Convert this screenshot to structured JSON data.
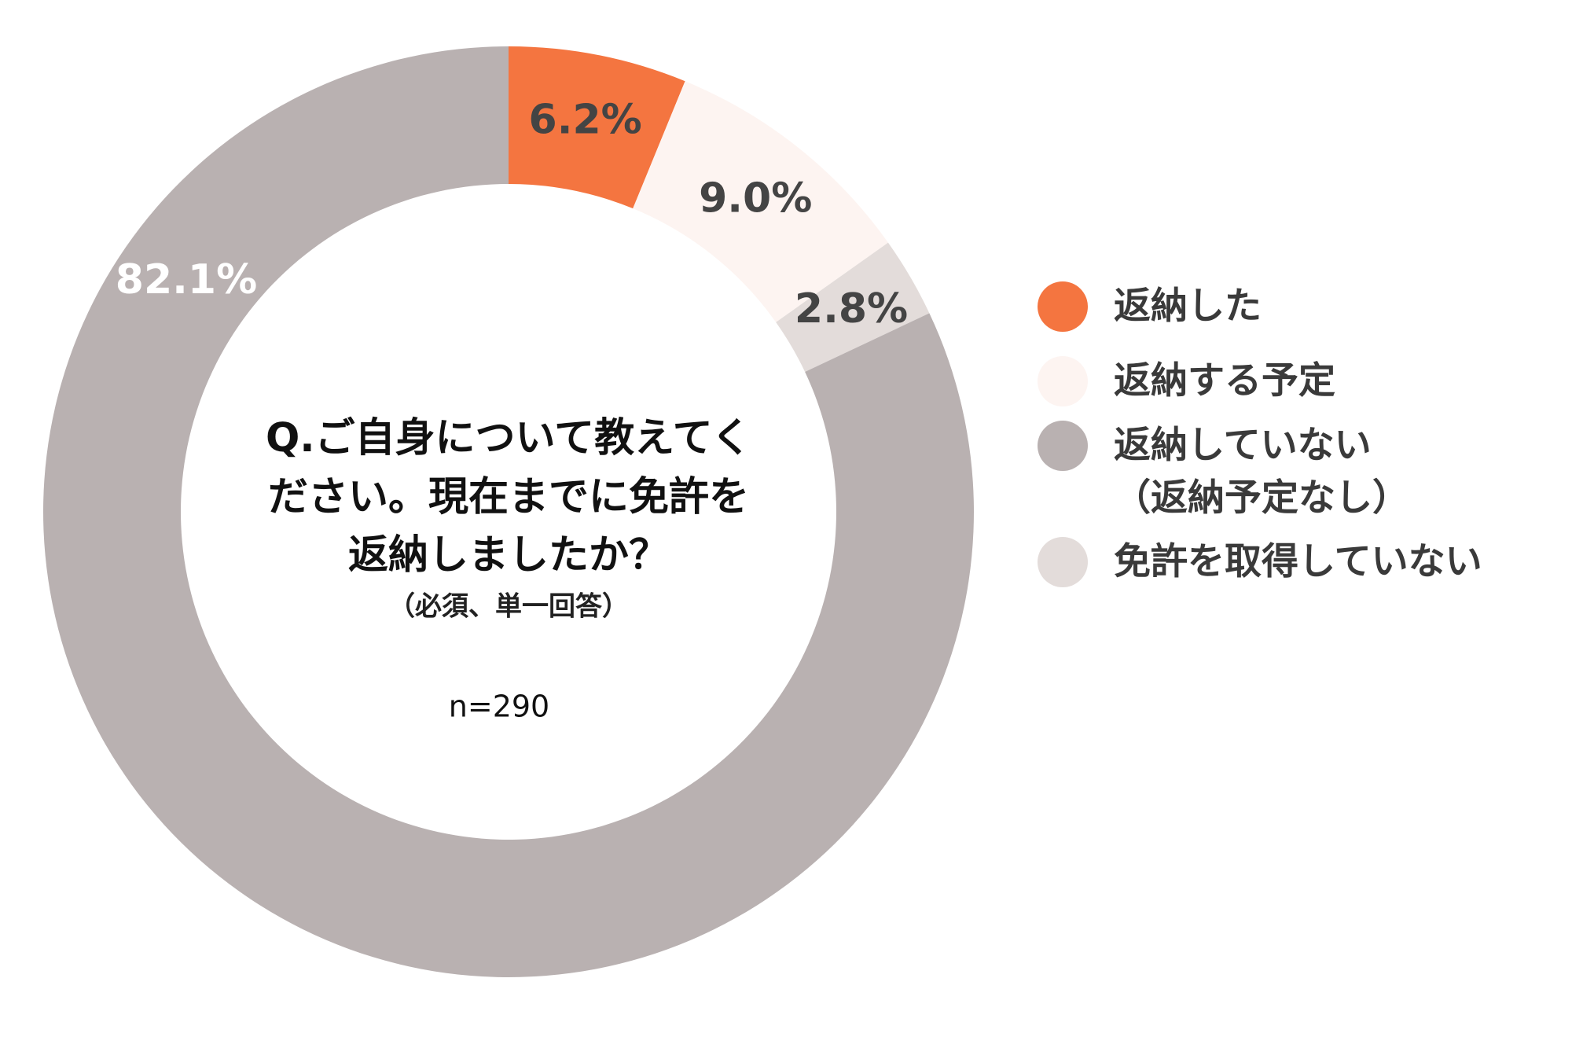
{
  "chart_data": {
    "type": "pie",
    "title": [
      "Q.ご自身について教えてく",
      "ださい。現在までに免許を",
      "返納しましたか？"
    ],
    "subtitle": "（必須、単一回答）",
    "annotation": "n=290",
    "categories": [
      "返納した",
      "返納する予定",
      "返納していない\n（返納予定なし）",
      "免許を取得していない"
    ],
    "values": [
      6.2,
      9.0,
      82.1,
      2.8
    ],
    "value_labels": [
      "6.2%",
      "9.0%",
      "82.1%",
      "2.8%"
    ],
    "colors": [
      "#f47540",
      "#fdf4f1",
      "#b9b1b1",
      "#e3dcda"
    ],
    "legend": "right"
  }
}
